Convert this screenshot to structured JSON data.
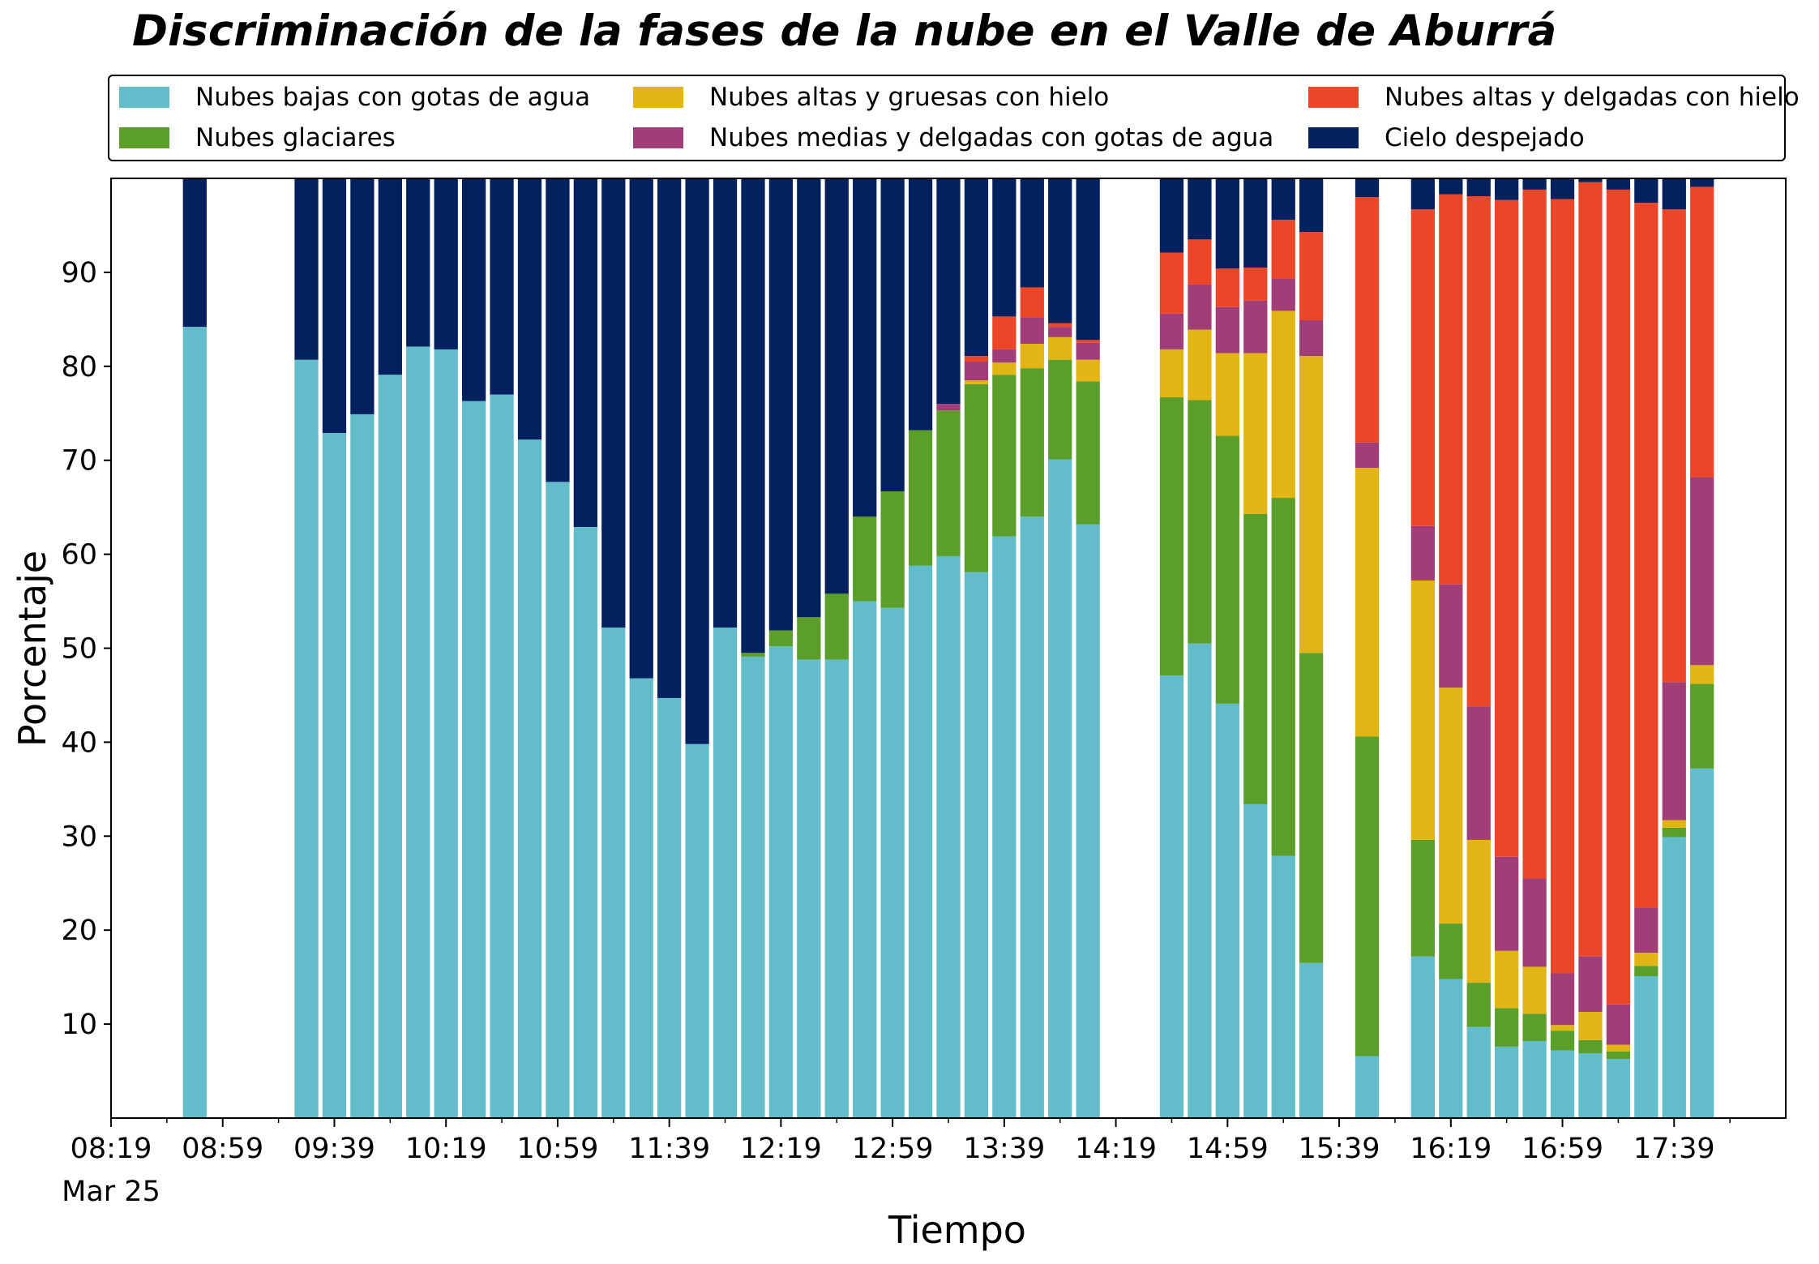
{
  "title": "Discriminación de la fases de la nube en el Valle de Aburrá",
  "chart_data": {
    "type": "bar",
    "stacked": true,
    "xlabel": "Tiempo",
    "ylabel": "Porcentaje",
    "ylim": [
      0,
      100
    ],
    "yticks": [
      10,
      20,
      30,
      40,
      50,
      60,
      70,
      80,
      90
    ],
    "xlim": [
      "08:19",
      "18:19"
    ],
    "x_major_ticks": [
      "08:19",
      "08:59",
      "09:39",
      "10:19",
      "10:59",
      "11:39",
      "12:19",
      "12:59",
      "13:39",
      "14:19",
      "14:59",
      "15:39",
      "16:19",
      "16:59",
      "17:39"
    ],
    "x_date_label": "Mar 25",
    "bar_width_minutes": 8.5,
    "legend_position": "top",
    "series": [
      {
        "name": "Nubes bajas con gotas de agua",
        "color": "#62bcc9"
      },
      {
        "name": "Nubes glaciares",
        "color": "#5b9e2a"
      },
      {
        "name": "Nubes altas y gruesas con hielo",
        "color": "#e2b414"
      },
      {
        "name": "Nubes medias y delgadas con gotas de agua",
        "color": "#a23e77"
      },
      {
        "name": "Nubes altas y delgadas con hielo",
        "color": "#ec4628"
      },
      {
        "name": "Cielo despejado",
        "color": "#03205f"
      }
    ],
    "x": [
      "08:49",
      "09:29",
      "09:39",
      "09:49",
      "09:59",
      "10:09",
      "10:19",
      "10:29",
      "10:39",
      "10:49",
      "10:59",
      "11:09",
      "11:19",
      "11:29",
      "11:39",
      "11:49",
      "11:59",
      "12:09",
      "12:19",
      "12:29",
      "12:39",
      "12:49",
      "12:59",
      "13:09",
      "13:19",
      "13:29",
      "13:39",
      "13:49",
      "13:59",
      "14:09",
      "14:39",
      "14:49",
      "14:59",
      "15:09",
      "15:19",
      "15:29",
      "15:49",
      "16:09",
      "16:19",
      "16:29",
      "16:39",
      "16:49",
      "16:59",
      "17:09",
      "17:19",
      "17:29",
      "17:39",
      "17:49"
    ],
    "values": [
      [
        84.2,
        0,
        0,
        0,
        0,
        15.8
      ],
      [
        80.7,
        0,
        0,
        0,
        0,
        19.3
      ],
      [
        72.9,
        0,
        0,
        0,
        0,
        27.1
      ],
      [
        74.9,
        0,
        0,
        0,
        0,
        25.1
      ],
      [
        79.1,
        0,
        0,
        0,
        0,
        20.9
      ],
      [
        82.1,
        0,
        0,
        0,
        0,
        17.9
      ],
      [
        81.8,
        0,
        0,
        0,
        0,
        18.2
      ],
      [
        76.3,
        0,
        0,
        0,
        0,
        23.7
      ],
      [
        77.0,
        0,
        0,
        0,
        0,
        23.0
      ],
      [
        72.2,
        0,
        0,
        0,
        0,
        27.8
      ],
      [
        67.7,
        0,
        0,
        0,
        0,
        32.3
      ],
      [
        62.9,
        0,
        0,
        0,
        0,
        37.1
      ],
      [
        52.2,
        0,
        0,
        0,
        0,
        47.8
      ],
      [
        46.8,
        0,
        0,
        0,
        0,
        53.2
      ],
      [
        44.7,
        0,
        0,
        0,
        0,
        55.3
      ],
      [
        39.8,
        0,
        0,
        0,
        0,
        60.2
      ],
      [
        52.2,
        0,
        0,
        0,
        0,
        47.8
      ],
      [
        49.1,
        0.4,
        0,
        0,
        0,
        50.5
      ],
      [
        50.2,
        1.7,
        0,
        0,
        0,
        48.1
      ],
      [
        48.8,
        4.5,
        0,
        0,
        0,
        46.7
      ],
      [
        48.8,
        7.0,
        0,
        0,
        0,
        44.2
      ],
      [
        55.0,
        9.0,
        0,
        0,
        0,
        36.0
      ],
      [
        54.3,
        12.4,
        0,
        0,
        0,
        33.3
      ],
      [
        58.8,
        14.4,
        0,
        0,
        0,
        26.8
      ],
      [
        59.8,
        15.5,
        0,
        0.7,
        0,
        24.0
      ],
      [
        58.1,
        20.0,
        0.4,
        2.0,
        0.6,
        18.9
      ],
      [
        61.9,
        17.2,
        1.3,
        1.4,
        3.5,
        14.7
      ],
      [
        64.0,
        15.8,
        2.6,
        2.8,
        3.2,
        11.6
      ],
      [
        70.1,
        10.6,
        2.4,
        1.1,
        0.4,
        15.4
      ],
      [
        63.2,
        15.2,
        2.3,
        1.8,
        0.3,
        17.2
      ],
      [
        47.1,
        29.6,
        5.1,
        3.8,
        6.5,
        7.9
      ],
      [
        50.5,
        25.9,
        7.5,
        4.8,
        4.8,
        6.5
      ],
      [
        44.1,
        28.5,
        8.8,
        4.9,
        4.1,
        9.6
      ],
      [
        33.4,
        30.9,
        17.1,
        5.6,
        3.5,
        9.5
      ],
      [
        27.9,
        38.1,
        19.9,
        3.4,
        6.3,
        4.4
      ],
      [
        16.5,
        33.0,
        31.6,
        3.8,
        9.4,
        5.7
      ],
      [
        6.6,
        34.0,
        28.6,
        2.7,
        26.1,
        2.0
      ],
      [
        17.2,
        12.4,
        27.6,
        5.8,
        33.7,
        3.3
      ],
      [
        14.8,
        5.9,
        25.1,
        11.0,
        41.5,
        1.7
      ],
      [
        9.7,
        4.7,
        15.2,
        14.2,
        54.3,
        1.9
      ],
      [
        7.6,
        4.1,
        6.1,
        10.0,
        69.9,
        2.3
      ],
      [
        8.2,
        2.9,
        5.0,
        9.4,
        73.3,
        1.2
      ],
      [
        7.2,
        2.1,
        0.6,
        5.5,
        82.4,
        2.2
      ],
      [
        6.9,
        1.4,
        3.0,
        5.9,
        82.4,
        0.4
      ],
      [
        6.3,
        0.8,
        0.7,
        4.3,
        86.7,
        1.2
      ],
      [
        15.1,
        1.1,
        1.4,
        4.8,
        75.0,
        2.6
      ],
      [
        29.9,
        1.0,
        0.8,
        14.7,
        50.3,
        3.3
      ],
      [
        37.2,
        9.0,
        2.0,
        20.0,
        30.9,
        0.9
      ]
    ]
  }
}
